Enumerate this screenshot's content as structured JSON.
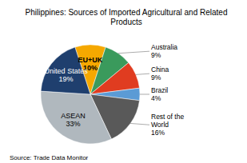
{
  "chart_data": {
    "type": "pie",
    "title": "Philippines: Sources of Imported Agricultural and Related\nProducts",
    "categories": [
      "EU+UK",
      "Australia",
      "China",
      "Brazil",
      "Rest of the\nWorld",
      "ASEAN",
      "United States"
    ],
    "values": [
      10,
      9,
      9,
      4,
      16,
      33,
      19
    ],
    "value_labels": [
      "10%",
      "9%",
      "9%",
      "4%",
      "16%",
      "33%",
      "19%"
    ],
    "colors": [
      "#f5a800",
      "#3a9a5c",
      "#e03c20",
      "#5b9bd5",
      "#595959",
      "#b0b8be",
      "#1f3f6e"
    ],
    "data_labels": true,
    "annotations": [
      "Source: Trade Data Monitor"
    ]
  }
}
